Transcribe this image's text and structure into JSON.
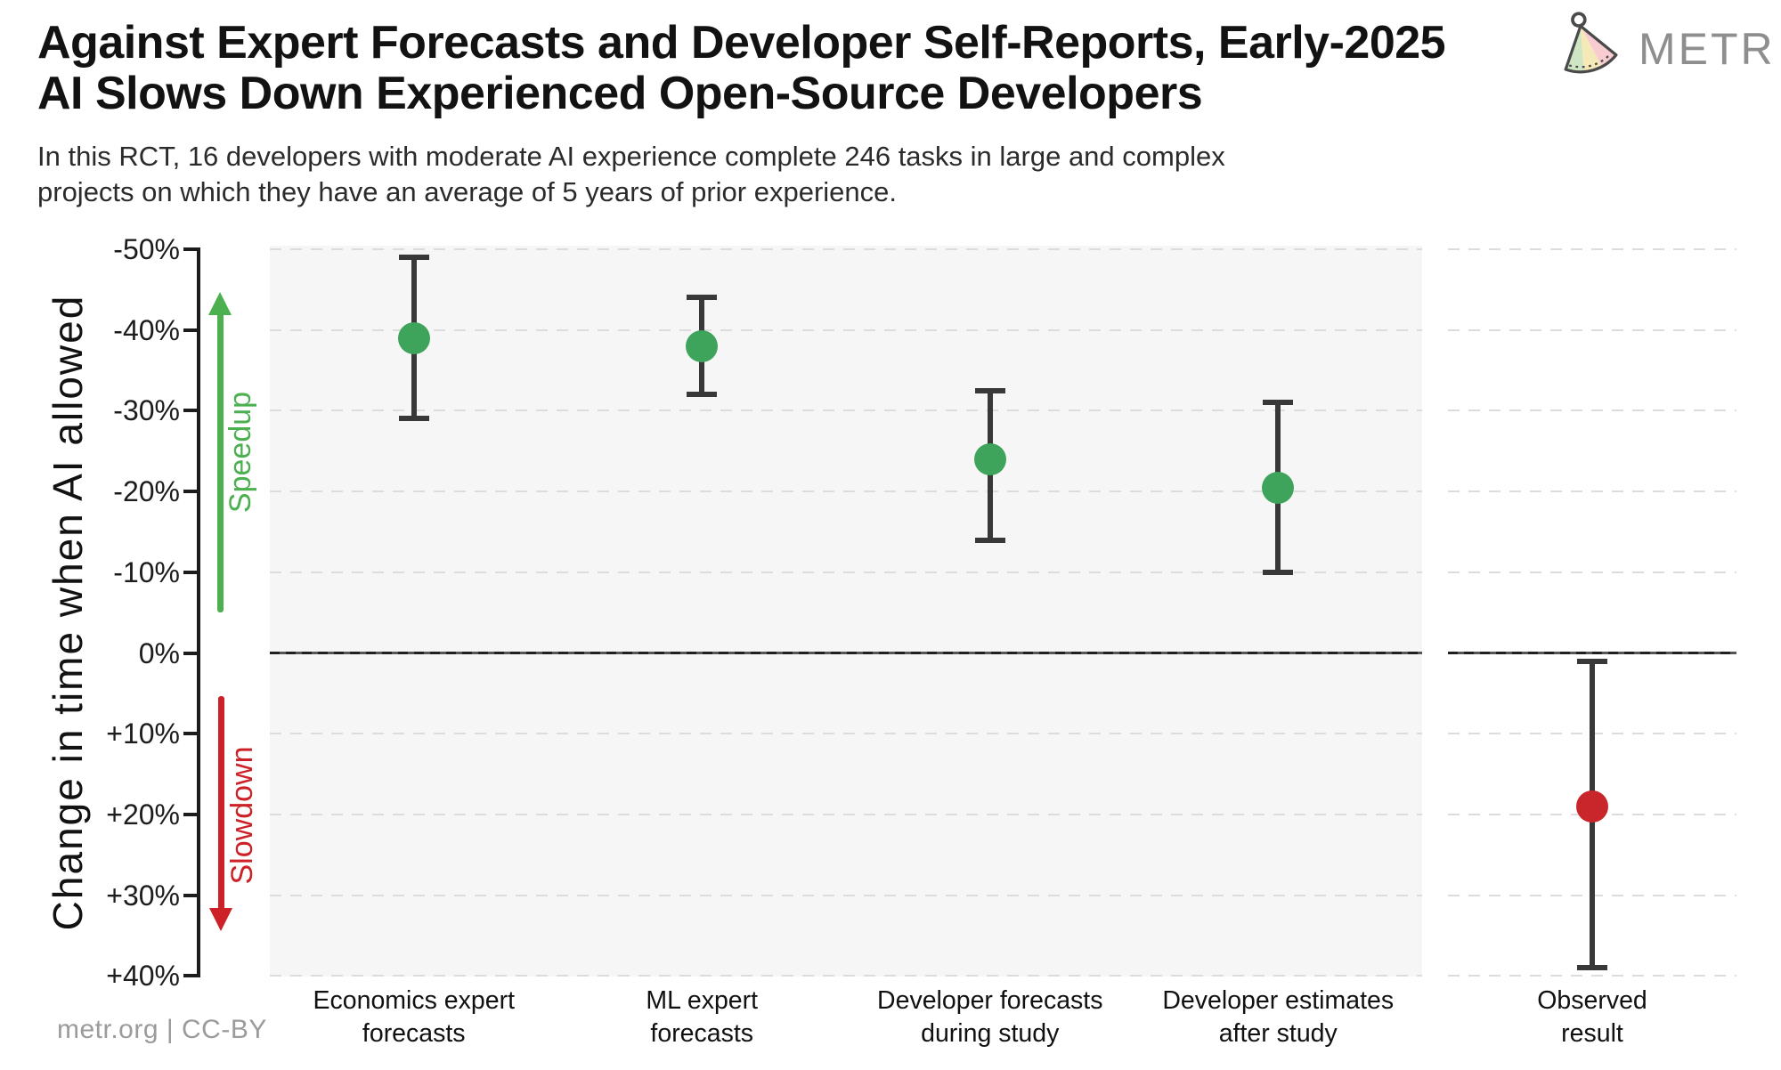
{
  "header": {
    "title_line1": "Against Expert Forecasts and Developer Self-Reports, Early-2025",
    "title_line2": "AI Slows Down Experienced Open-Source Developers",
    "subtitle_line1": "In this RCT, 16 developers with moderate AI experience complete 246 tasks in large and complex",
    "subtitle_line2": "projects on which they have an average of 5 years of prior experience.",
    "logo_text": "METR"
  },
  "footer": {
    "credit": "metr.org  |  CC-BY"
  },
  "chart_data": {
    "type": "scatter",
    "title": "Against Expert Forecasts and Developer Self-Reports, Early-2025 AI Slows Down Experienced Open-Source Developers",
    "xlabel": "",
    "ylabel": "Change in time when AI allowed",
    "units": "%",
    "y_axis": {
      "top_value": -50,
      "bottom_value": 40,
      "note": "negative values (speedup) plotted upward, positive (slowdown) downward",
      "ticks": [
        {
          "value": -50,
          "label": "-50%"
        },
        {
          "value": -40,
          "label": "-40%"
        },
        {
          "value": -30,
          "label": "-30%"
        },
        {
          "value": -20,
          "label": "-20%"
        },
        {
          "value": -10,
          "label": "-10%"
        },
        {
          "value": 0,
          "label": "0%"
        },
        {
          "value": 10,
          "label": "+10%"
        },
        {
          "value": 20,
          "label": "+20%"
        },
        {
          "value": 30,
          "label": "+30%"
        },
        {
          "value": 40,
          "label": "+40%"
        }
      ]
    },
    "gridlines": "dashed horizontal line at every 10%, solid dark line at 0%",
    "annotations": {
      "speedup_label": "Speedup",
      "slowdown_label": "Slowdown",
      "zero_line_value": 0
    },
    "colors": {
      "forecast_dot": "#3FA45B",
      "observed_dot": "#C9262C",
      "speedup_arrow": "#4CAF50",
      "slowdown_arrow": "#CC2127",
      "error_bar": "#383838",
      "forecast_panel_bg": "#f6f6f6",
      "observed_panel_bg": "#ffffff"
    },
    "points": [
      {
        "category_line1": "Economics expert",
        "category_line2": "forecasts",
        "value": -39,
        "ci": [
          -49,
          -29
        ],
        "panel": "forecasts"
      },
      {
        "category_line1": "ML expert",
        "category_line2": "forecasts",
        "value": -38,
        "ci": [
          -44,
          -32
        ],
        "panel": "forecasts"
      },
      {
        "category_line1": "Developer forecasts",
        "category_line2": "during study",
        "value": -24,
        "ci": [
          -32.5,
          -14
        ],
        "panel": "forecasts"
      },
      {
        "category_line1": "Developer estimates",
        "category_line2": "after study",
        "value": -20.5,
        "ci": [
          -31,
          -10
        ],
        "panel": "forecasts"
      },
      {
        "category_line1": "Observed",
        "category_line2": "result",
        "value": 19,
        "ci": [
          1,
          39
        ],
        "panel": "observed"
      }
    ]
  }
}
